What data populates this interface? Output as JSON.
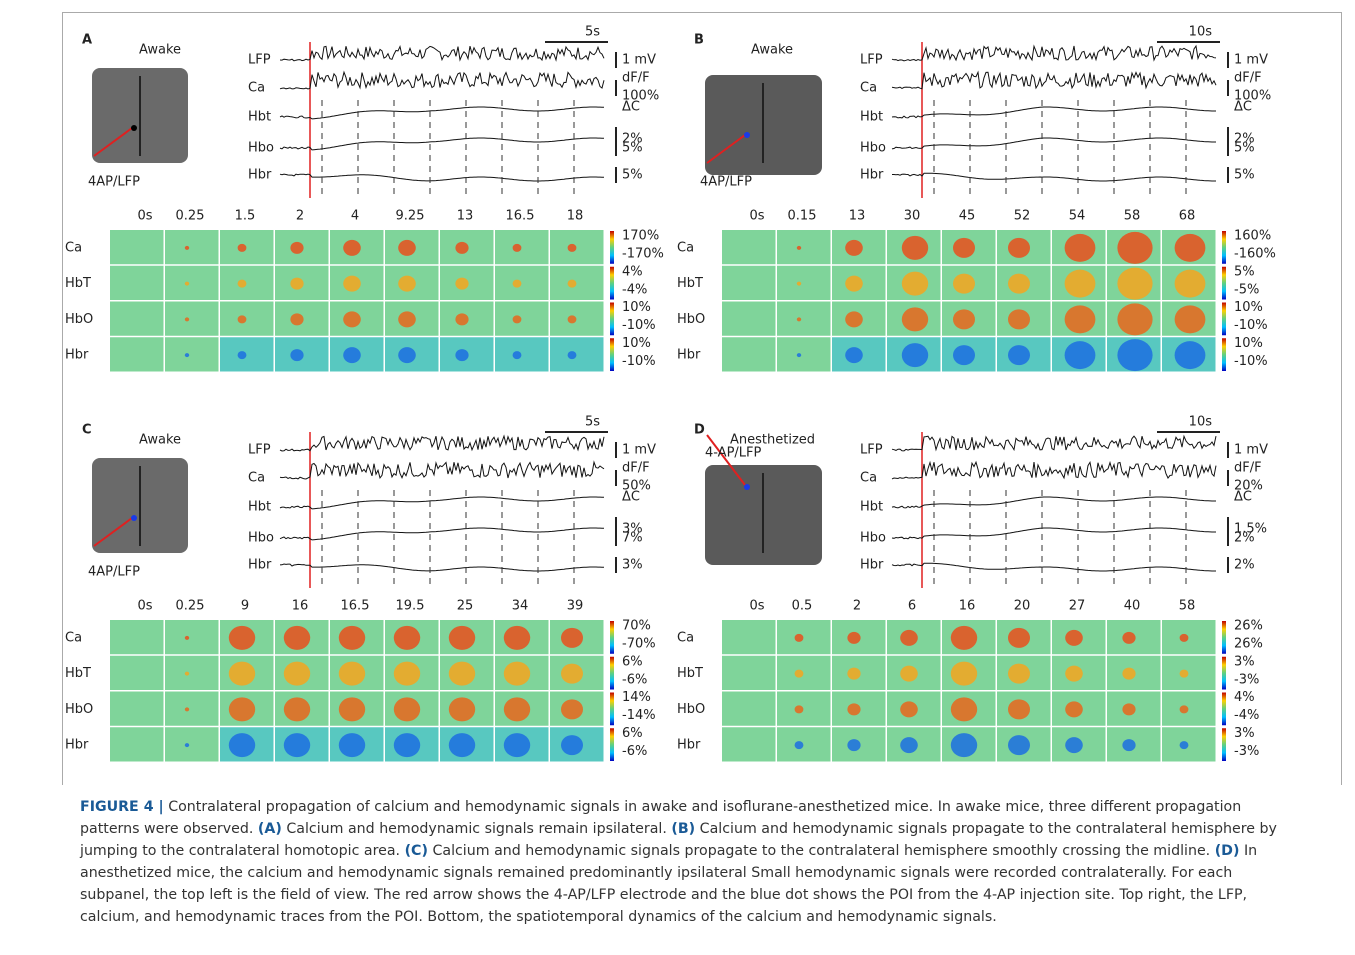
{
  "panels": [
    {
      "letter": "A",
      "state": "Awake",
      "electrode": "4AP/LFP",
      "time_scale": "5s",
      "traces": [
        {
          "name": "LFP",
          "scale": [
            "1 mV"
          ]
        },
        {
          "name": "Ca",
          "scale": [
            "dF/F",
            "100%"
          ]
        },
        {
          "name": "Hbt",
          "scale": [
            "ΔC",
            "2%"
          ]
        },
        {
          "name": "Hbo",
          "scale": [
            "5%"
          ]
        },
        {
          "name": "Hbr",
          "scale": [
            "5%"
          ]
        }
      ],
      "times": [
        "0s",
        "0.25",
        "1.5",
        "2",
        "4",
        "9.25",
        "13",
        "16.5",
        "18"
      ],
      "rows": [
        {
          "name": "Ca",
          "cbar": [
            "170%",
            "-170%"
          ]
        },
        {
          "name": "HbT",
          "cbar": [
            "4%",
            "-4%"
          ]
        },
        {
          "name": "HbO",
          "cbar": [
            "10%",
            "-10%"
          ]
        },
        {
          "name": "Hbr",
          "cbar": [
            "10%",
            "-10%"
          ]
        }
      ]
    },
    {
      "letter": "B",
      "state": "Awake",
      "electrode": "4AP/LFP",
      "time_scale": "10s",
      "traces": [
        {
          "name": "LFP",
          "scale": [
            "1 mV"
          ]
        },
        {
          "name": "Ca",
          "scale": [
            "dF/F",
            "100%"
          ]
        },
        {
          "name": "Hbt",
          "scale": [
            "ΔC",
            "2%"
          ]
        },
        {
          "name": "Hbo",
          "scale": [
            "5%"
          ]
        },
        {
          "name": "Hbr",
          "scale": [
            "5%"
          ]
        }
      ],
      "times": [
        "0s",
        "0.15",
        "13",
        "30",
        "45",
        "52",
        "54",
        "58",
        "68"
      ],
      "rows": [
        {
          "name": "Ca",
          "cbar": [
            "160%",
            "-160%"
          ]
        },
        {
          "name": "HbT",
          "cbar": [
            "5%",
            "-5%"
          ]
        },
        {
          "name": "HbO",
          "cbar": [
            "10%",
            "-10%"
          ]
        },
        {
          "name": "Hbr",
          "cbar": [
            "10%",
            "-10%"
          ]
        }
      ]
    },
    {
      "letter": "C",
      "state": "Awake",
      "electrode": "4AP/LFP",
      "time_scale": "5s",
      "traces": [
        {
          "name": "LFP",
          "scale": [
            "1 mV"
          ]
        },
        {
          "name": "Ca",
          "scale": [
            "dF/F",
            "50%"
          ]
        },
        {
          "name": "Hbt",
          "scale": [
            "ΔC",
            "3%"
          ]
        },
        {
          "name": "Hbo",
          "scale": [
            "7%"
          ]
        },
        {
          "name": "Hbr",
          "scale": [
            "3%"
          ]
        }
      ],
      "times": [
        "0s",
        "0.25",
        "9",
        "16",
        "16.5",
        "19.5",
        "25",
        "34",
        "39"
      ],
      "rows": [
        {
          "name": "Ca",
          "cbar": [
            "70%",
            "-70%"
          ]
        },
        {
          "name": "HbT",
          "cbar": [
            "6%",
            "-6%"
          ]
        },
        {
          "name": "HbO",
          "cbar": [
            "14%",
            "-14%"
          ]
        },
        {
          "name": "Hbr",
          "cbar": [
            "6%",
            "-6%"
          ]
        }
      ]
    },
    {
      "letter": "D",
      "state": "Anesthetized",
      "electrode": "4-AP/LFP",
      "time_scale": "10s",
      "traces": [
        {
          "name": "LFP",
          "scale": [
            "1 mV"
          ]
        },
        {
          "name": "Ca",
          "scale": [
            "dF/F",
            "20%"
          ]
        },
        {
          "name": "Hbt",
          "scale": [
            "ΔC",
            "1.5%"
          ]
        },
        {
          "name": "Hbo",
          "scale": [
            "2%"
          ]
        },
        {
          "name": "Hbr",
          "scale": [
            "2%"
          ]
        }
      ],
      "times": [
        "0s",
        "0.5",
        "2",
        "6",
        "16",
        "20",
        "27",
        "40",
        "58"
      ],
      "rows": [
        {
          "name": "Ca",
          "cbar": [
            "26%",
            "26%"
          ]
        },
        {
          "name": "HbT",
          "cbar": [
            "3%",
            "-3%"
          ]
        },
        {
          "name": "HbO",
          "cbar": [
            "4%",
            "-4%"
          ]
        },
        {
          "name": "Hbr",
          "cbar": [
            "3%",
            "-3%"
          ]
        }
      ]
    }
  ],
  "caption": {
    "label": "FIGURE 4 |",
    "segments": [
      {
        "text": " Contralateral propagation of calcium and hemodynamic signals in awake and isoflurane-anesthetized mice. In awake mice, three different propagation patterns were observed. ",
        "bold": false
      },
      {
        "text": "(A)",
        "bold": true
      },
      {
        "text": " Calcium and hemodynamic signals remain ipsilateral. ",
        "bold": false
      },
      {
        "text": "(B)",
        "bold": true
      },
      {
        "text": " Calcium and hemodynamic signals propagate to the contralateral hemisphere by jumping to the contralateral homotopic area. ",
        "bold": false
      },
      {
        "text": "(C)",
        "bold": true
      },
      {
        "text": " Calcium and hemodynamic signals propagate to the contralateral hemisphere smoothly crossing the midline. ",
        "bold": false
      },
      {
        "text": "(D)",
        "bold": true
      },
      {
        "text": " In anesthetized mice, the calcium and hemodynamic signals remained predominantly ipsilateral Small hemodynamic signals were recorded contralaterally. For each subpanel, the top left is the field of view. The red arrow shows the 4-AP/LFP electrode and the blue dot shows the POI from the 4-AP injection site. Top right, the LFP, calcium, and hemodynamic traces from the POI. Bottom, the spatiotemporal dynamics of the calcium and hemodynamic signals.",
        "bold": false
      }
    ]
  }
}
